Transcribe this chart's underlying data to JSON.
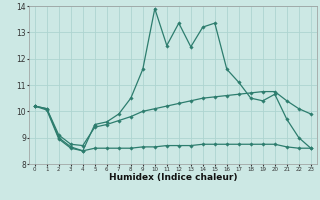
{
  "xlabel": "Humidex (Indice chaleur)",
  "hours": [
    0,
    1,
    2,
    3,
    4,
    5,
    6,
    7,
    8,
    9,
    10,
    11,
    12,
    13,
    14,
    15,
    16,
    17,
    18,
    19,
    20,
    21,
    22,
    23
  ],
  "line_max": [
    10.2,
    10.1,
    9.0,
    8.65,
    8.5,
    9.5,
    9.6,
    9.9,
    10.5,
    11.6,
    13.9,
    12.5,
    13.35,
    12.45,
    13.2,
    13.35,
    11.6,
    11.1,
    10.5,
    10.4,
    10.65,
    9.7,
    9.0,
    8.6
  ],
  "line_mid": [
    10.2,
    10.1,
    9.1,
    8.75,
    8.7,
    9.4,
    9.5,
    9.65,
    9.8,
    10.0,
    10.1,
    10.2,
    10.3,
    10.4,
    10.5,
    10.55,
    10.6,
    10.65,
    10.7,
    10.75,
    10.75,
    10.4,
    10.1,
    9.9
  ],
  "line_min": [
    10.2,
    10.05,
    8.95,
    8.6,
    8.5,
    8.6,
    8.6,
    8.6,
    8.6,
    8.65,
    8.65,
    8.7,
    8.7,
    8.7,
    8.75,
    8.75,
    8.75,
    8.75,
    8.75,
    8.75,
    8.75,
    8.65,
    8.6,
    8.6
  ],
  "line_color": "#2d7d6e",
  "bg_color": "#cce8e4",
  "grid_color": "#aed4d0",
  "ylim": [
    8,
    14
  ],
  "xlim_min": 0,
  "xlim_max": 23
}
